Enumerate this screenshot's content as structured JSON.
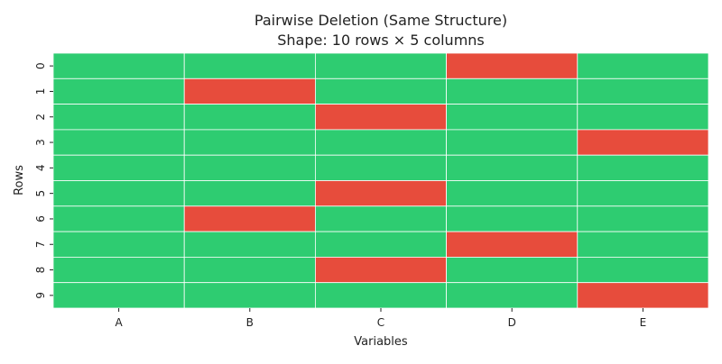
{
  "chart_data": {
    "type": "heatmap",
    "title": "Pairwise Deletion (Same Structure)",
    "subtitle": "Shape: 10 rows × 5 columns",
    "xlabel": "Variables",
    "ylabel": "Rows",
    "columns": [
      "A",
      "B",
      "C",
      "D",
      "E"
    ],
    "rows": [
      "0",
      "1",
      "2",
      "3",
      "4",
      "5",
      "6",
      "7",
      "8",
      "9"
    ],
    "missing": [
      [
        0,
        0,
        0,
        1,
        0
      ],
      [
        0,
        1,
        0,
        0,
        0
      ],
      [
        0,
        0,
        1,
        0,
        0
      ],
      [
        0,
        0,
        0,
        0,
        1
      ],
      [
        0,
        0,
        0,
        0,
        0
      ],
      [
        0,
        0,
        1,
        0,
        0
      ],
      [
        0,
        1,
        0,
        0,
        0
      ],
      [
        0,
        0,
        0,
        1,
        0
      ],
      [
        0,
        0,
        1,
        0,
        0
      ],
      [
        0,
        0,
        0,
        0,
        1
      ]
    ],
    "colors": {
      "present": "#2ecc71",
      "missing": "#e74c3c",
      "gridline": "#ffffff"
    },
    "legend": "none",
    "grid": false
  }
}
